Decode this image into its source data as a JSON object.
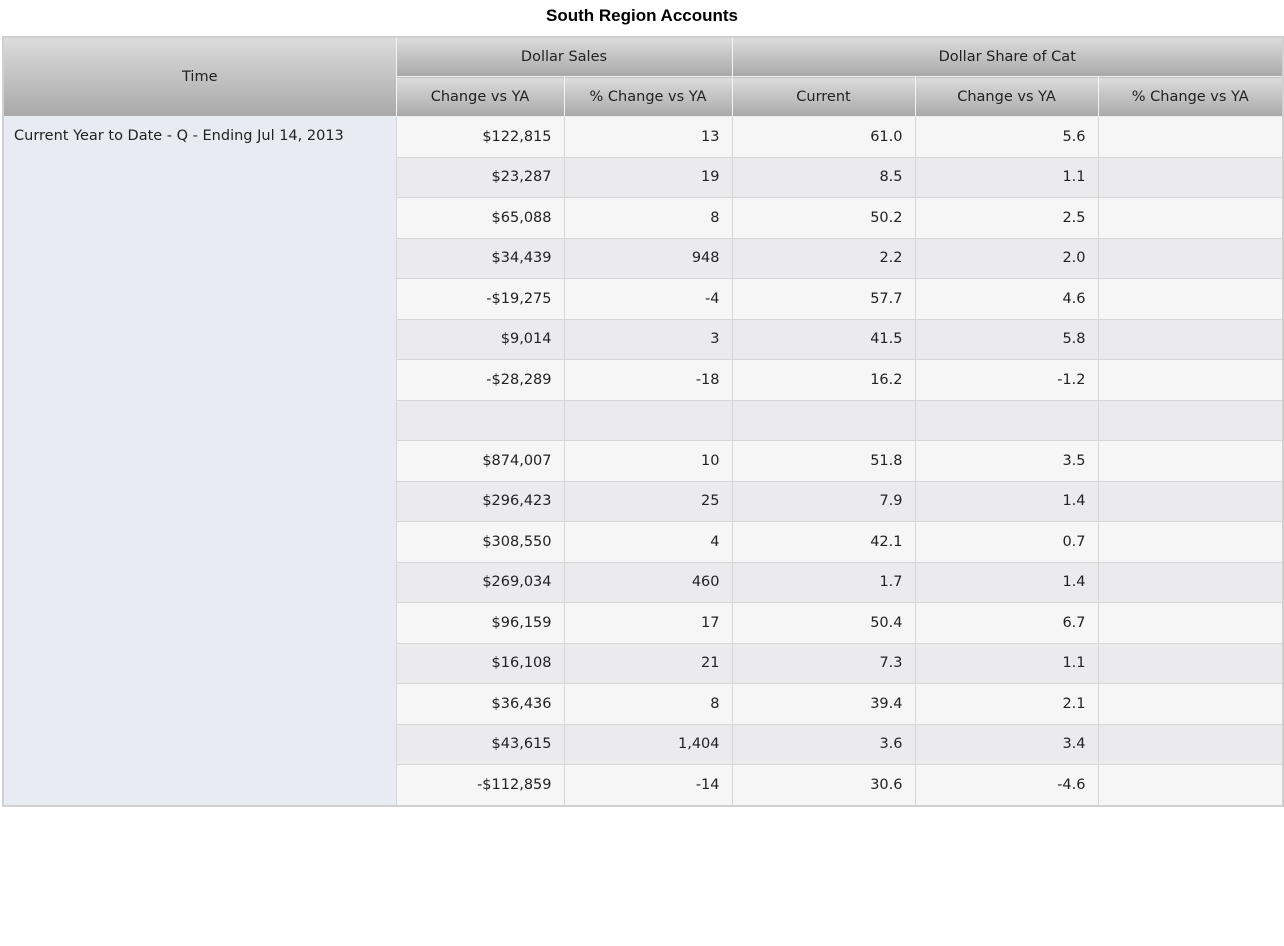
{
  "title": "South Region Accounts",
  "headers": {
    "time": "Time",
    "group_dollar_sales": "Dollar Sales",
    "group_dollar_share": "Dollar Share of Cat",
    "columns": [
      "Change vs YA",
      "% Change vs YA",
      "Current",
      "Change vs YA",
      "% Change vs YA"
    ]
  },
  "time_label": "Current Year to Date - Q - Ending Jul 14, 2013",
  "rows": [
    [
      "$122,815",
      "13",
      "61.0",
      "5.6",
      ""
    ],
    [
      "$23,287",
      "19",
      "8.5",
      "1.1",
      ""
    ],
    [
      "$65,088",
      "8",
      "50.2",
      "2.5",
      ""
    ],
    [
      "$34,439",
      "948",
      "2.2",
      "2.0",
      ""
    ],
    [
      "-$19,275",
      "-4",
      "57.7",
      "4.6",
      ""
    ],
    [
      "$9,014",
      "3",
      "41.5",
      "5.8",
      ""
    ],
    [
      "-$28,289",
      "-18",
      "16.2",
      "-1.2",
      ""
    ],
    [
      "",
      "",
      "",
      "",
      ""
    ],
    [
      "$874,007",
      "10",
      "51.8",
      "3.5",
      ""
    ],
    [
      "$296,423",
      "25",
      "7.9",
      "1.4",
      ""
    ],
    [
      "$308,550",
      "4",
      "42.1",
      "0.7",
      ""
    ],
    [
      "$269,034",
      "460",
      "1.7",
      "1.4",
      ""
    ],
    [
      "$96,159",
      "17",
      "50.4",
      "6.7",
      ""
    ],
    [
      "$16,108",
      "21",
      "7.3",
      "1.1",
      ""
    ],
    [
      "$36,436",
      "8",
      "39.4",
      "2.1",
      ""
    ],
    [
      "$43,615",
      "1,404",
      "3.6",
      "3.4",
      ""
    ],
    [
      "-$112,859",
      "-14",
      "30.6",
      "-4.6",
      ""
    ]
  ]
}
